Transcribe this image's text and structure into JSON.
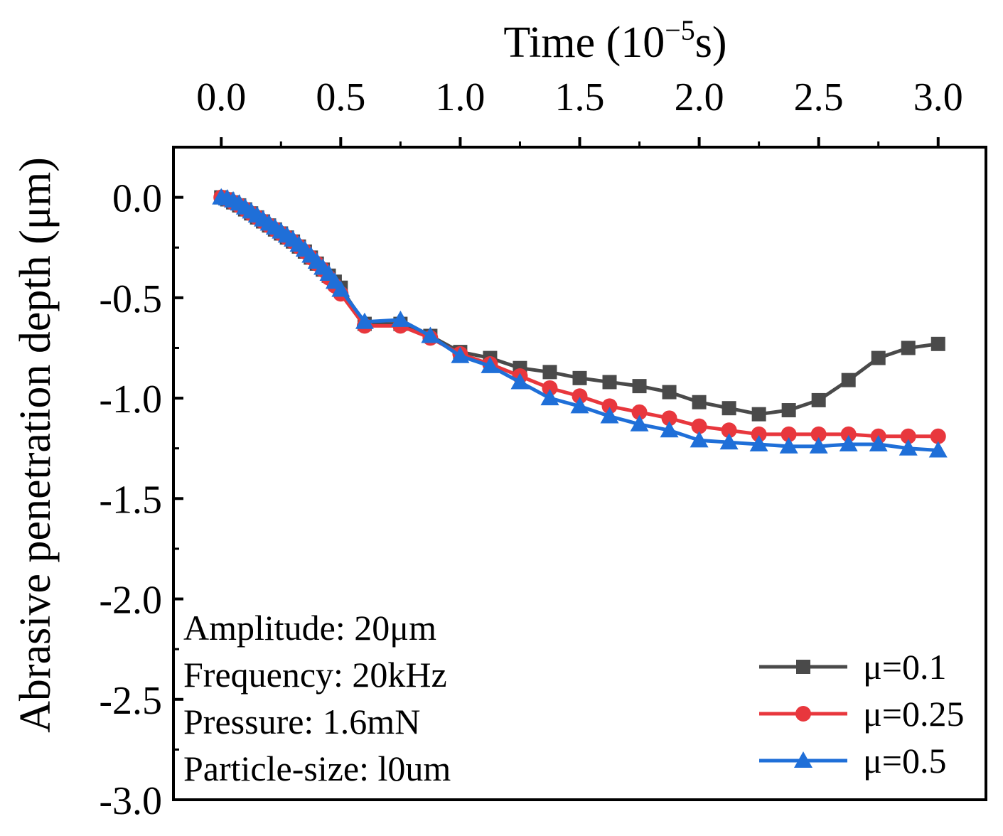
{
  "chart_data": {
    "type": "line",
    "title": "",
    "xlabel": "Time (10",
    "xlabel_exponent": "−5",
    "xlabel_unit": "s)",
    "ylabel": "Abrasive penetration depth (μm)",
    "xlim": [
      -0.2,
      3.2
    ],
    "ylim": [
      -3.0,
      0.25
    ],
    "x_ticks": [
      "0.0",
      "0.5",
      "1.0",
      "1.5",
      "2.0",
      "2.5",
      "3.0"
    ],
    "y_ticks": [
      "0.0",
      "-0.5",
      "-1.0",
      "-1.5",
      "-2.0",
      "-2.5",
      "-3.0"
    ],
    "x_axis_position": "top",
    "grid": false,
    "legend_position": "bottom-right",
    "annotations": [
      "Amplitude: 20μm",
      "Frequency: 20kHz",
      "Pressure: 1.6mN",
      "Particle-size: l0um"
    ],
    "x": [
      0.0,
      0.025,
      0.05,
      0.075,
      0.1,
      0.125,
      0.15,
      0.175,
      0.2,
      0.225,
      0.25,
      0.275,
      0.3,
      0.325,
      0.35,
      0.375,
      0.4,
      0.425,
      0.45,
      0.475,
      0.5,
      0.6,
      0.75,
      0.875,
      1.0,
      1.125,
      1.25,
      1.375,
      1.5,
      1.625,
      1.75,
      1.875,
      2.0,
      2.125,
      2.25,
      2.375,
      2.5,
      2.625,
      2.75,
      2.875,
      3.0
    ],
    "series": [
      {
        "name": "μ=0.1",
        "color": "#4a4a4a",
        "marker": "square",
        "values": [
          0.0,
          -0.01,
          -0.025,
          -0.04,
          -0.06,
          -0.08,
          -0.1,
          -0.12,
          -0.14,
          -0.16,
          -0.18,
          -0.2,
          -0.22,
          -0.245,
          -0.27,
          -0.3,
          -0.33,
          -0.36,
          -0.39,
          -0.42,
          -0.45,
          -0.63,
          -0.63,
          -0.69,
          -0.77,
          -0.8,
          -0.85,
          -0.87,
          -0.9,
          -0.92,
          -0.94,
          -0.97,
          -1.02,
          -1.05,
          -1.08,
          -1.06,
          -1.01,
          -0.91,
          -0.8,
          -0.75,
          -0.73
        ]
      },
      {
        "name": "μ=0.25",
        "color": "#e8373d",
        "marker": "circle",
        "values": [
          0.0,
          -0.01,
          -0.025,
          -0.04,
          -0.06,
          -0.08,
          -0.1,
          -0.12,
          -0.14,
          -0.16,
          -0.18,
          -0.2,
          -0.22,
          -0.245,
          -0.27,
          -0.3,
          -0.33,
          -0.36,
          -0.4,
          -0.44,
          -0.48,
          -0.64,
          -0.64,
          -0.7,
          -0.78,
          -0.83,
          -0.89,
          -0.95,
          -0.99,
          -1.04,
          -1.07,
          -1.1,
          -1.14,
          -1.16,
          -1.18,
          -1.18,
          -1.18,
          -1.18,
          -1.19,
          -1.19,
          -1.19
        ]
      },
      {
        "name": "μ=0.5",
        "color": "#1f6fd8",
        "marker": "triangle",
        "values": [
          0.0,
          -0.005,
          -0.015,
          -0.03,
          -0.05,
          -0.07,
          -0.09,
          -0.11,
          -0.13,
          -0.15,
          -0.17,
          -0.19,
          -0.21,
          -0.235,
          -0.26,
          -0.29,
          -0.32,
          -0.35,
          -0.38,
          -0.42,
          -0.46,
          -0.62,
          -0.61,
          -0.69,
          -0.79,
          -0.84,
          -0.92,
          -1.0,
          -1.04,
          -1.09,
          -1.13,
          -1.16,
          -1.21,
          -1.22,
          -1.23,
          -1.24,
          -1.24,
          -1.23,
          -1.23,
          -1.25,
          -1.26
        ]
      }
    ]
  }
}
